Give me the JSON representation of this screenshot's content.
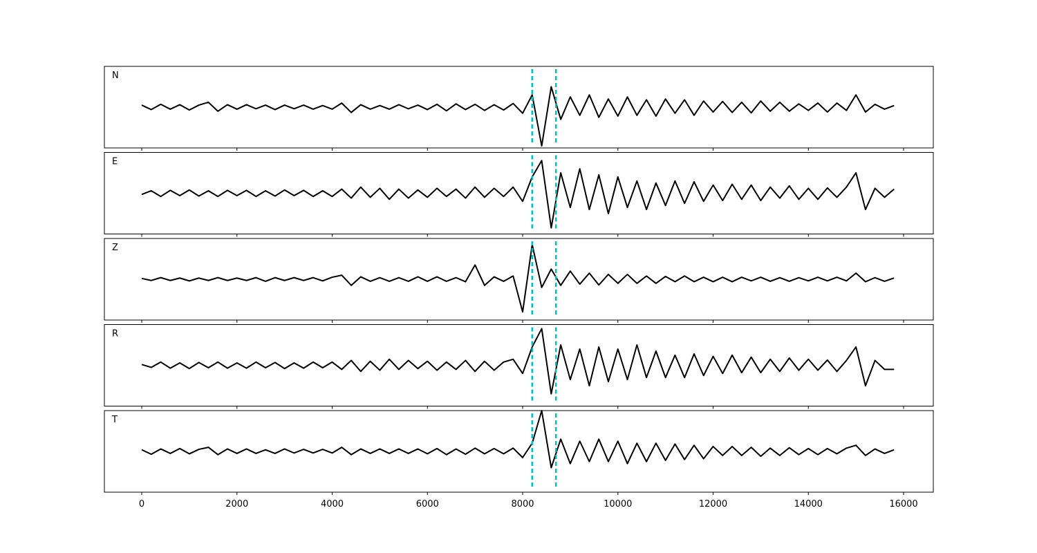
{
  "chart_data": {
    "type": "line",
    "x": [
      0,
      200,
      400,
      600,
      800,
      1000,
      1200,
      1400,
      1600,
      1800,
      2000,
      2200,
      2400,
      2600,
      2800,
      3000,
      3200,
      3400,
      3600,
      3800,
      4000,
      4200,
      4400,
      4600,
      4800,
      5000,
      5200,
      5400,
      5600,
      5800,
      6000,
      6200,
      6400,
      6600,
      6800,
      7000,
      7200,
      7400,
      7600,
      7800,
      8000,
      8200,
      8400,
      8600,
      8800,
      9000,
      9200,
      9400,
      9600,
      9800,
      10000,
      10200,
      10400,
      10600,
      10800,
      11000,
      11200,
      11400,
      11600,
      11800,
      12000,
      12200,
      12400,
      12600,
      12800,
      13000,
      13200,
      13400,
      13600,
      13800,
      14000,
      14200,
      14400,
      14600,
      14800,
      15000,
      15200,
      15400,
      15600,
      15800
    ],
    "series": [
      {
        "name": "N",
        "color": "#000000",
        "values": [
          0.05,
          -0.06,
          0.07,
          -0.05,
          0.06,
          -0.07,
          0.05,
          0.12,
          -0.1,
          0.06,
          -0.05,
          0.06,
          -0.04,
          0.05,
          -0.06,
          0.05,
          -0.04,
          0.05,
          -0.05,
          0.04,
          -0.05,
          0.1,
          -0.13,
          0.06,
          -0.05,
          0.04,
          -0.05,
          0.06,
          -0.04,
          0.05,
          -0.06,
          0.07,
          -0.09,
          0.08,
          -0.06,
          0.07,
          -0.08,
          0.06,
          -0.07,
          0.09,
          -0.15,
          0.3,
          -0.95,
          0.5,
          -0.3,
          0.25,
          -0.2,
          0.3,
          -0.25,
          0.2,
          -0.22,
          0.25,
          -0.2,
          0.18,
          -0.22,
          0.2,
          -0.15,
          0.18,
          -0.2,
          0.15,
          -0.12,
          0.14,
          -0.13,
          0.12,
          -0.14,
          0.15,
          -0.1,
          0.12,
          -0.1,
          0.08,
          -0.08,
          0.1,
          -0.12,
          0.1,
          -0.08,
          0.3,
          -0.12,
          0.07,
          -0.05,
          0.04
        ]
      },
      {
        "name": "E",
        "color": "#000000",
        "values": [
          -0.03,
          0.06,
          -0.08,
          0.07,
          -0.06,
          0.08,
          -0.07,
          0.06,
          -0.08,
          0.07,
          -0.06,
          0.07,
          -0.08,
          0.06,
          -0.07,
          0.08,
          -0.06,
          0.07,
          -0.08,
          0.06,
          -0.08,
          0.1,
          -0.12,
          0.15,
          -0.1,
          0.12,
          -0.15,
          0.1,
          -0.12,
          0.08,
          -0.1,
          0.12,
          -0.08,
          0.1,
          -0.12,
          0.15,
          -0.1,
          0.12,
          -0.08,
          0.15,
          -0.2,
          0.4,
          0.8,
          -0.85,
          0.5,
          -0.35,
          0.6,
          -0.4,
          0.45,
          -0.5,
          0.4,
          -0.35,
          0.3,
          -0.4,
          0.25,
          -0.3,
          0.3,
          -0.25,
          0.28,
          -0.2,
          0.2,
          -0.18,
          0.22,
          -0.15,
          0.2,
          -0.18,
          0.15,
          -0.12,
          0.18,
          -0.15,
          0.12,
          -0.15,
          0.13,
          -0.1,
          0.15,
          0.5,
          -0.4,
          0.12,
          -0.1,
          0.1
        ]
      },
      {
        "name": "Z",
        "color": "#000000",
        "values": [
          0.02,
          -0.03,
          0.04,
          -0.03,
          0.03,
          -0.04,
          0.03,
          -0.03,
          0.04,
          -0.03,
          0.03,
          -0.03,
          0.04,
          -0.05,
          0.04,
          -0.03,
          0.04,
          -0.03,
          0.04,
          -0.04,
          0.05,
          0.1,
          -0.15,
          0.06,
          -0.05,
          0.04,
          -0.05,
          0.04,
          -0.05,
          0.06,
          -0.05,
          0.06,
          -0.05,
          0.04,
          -0.06,
          0.35,
          -0.15,
          0.06,
          -0.05,
          0.08,
          -0.8,
          0.85,
          -0.2,
          0.25,
          -0.15,
          0.2,
          -0.12,
          0.15,
          -0.14,
          0.12,
          -0.1,
          0.12,
          -0.1,
          0.08,
          -0.1,
          0.07,
          -0.06,
          0.08,
          -0.06,
          0.05,
          -0.06,
          0.05,
          -0.06,
          0.05,
          -0.04,
          0.05,
          -0.05,
          0.04,
          -0.05,
          0.04,
          -0.04,
          0.05,
          -0.04,
          0.05,
          -0.04,
          0.15,
          -0.06,
          0.04,
          -0.05,
          0.03
        ]
      },
      {
        "name": "R",
        "color": "#000000",
        "values": [
          0.02,
          -0.05,
          0.08,
          -0.07,
          0.06,
          -0.08,
          0.07,
          -0.06,
          0.08,
          -0.07,
          0.06,
          -0.07,
          0.08,
          -0.06,
          0.07,
          -0.08,
          0.06,
          -0.07,
          0.08,
          -0.06,
          0.08,
          -0.1,
          0.12,
          -0.15,
          0.1,
          -0.12,
          0.15,
          -0.1,
          0.12,
          -0.08,
          0.1,
          -0.12,
          0.08,
          -0.1,
          0.12,
          -0.15,
          0.1,
          -0.12,
          0.08,
          0.15,
          -0.2,
          0.45,
          0.9,
          -0.7,
          0.5,
          -0.35,
          0.4,
          -0.5,
          0.45,
          -0.4,
          0.4,
          -0.35,
          0.5,
          -0.3,
          0.35,
          -0.3,
          0.25,
          -0.3,
          0.28,
          -0.25,
          0.22,
          -0.2,
          0.25,
          -0.18,
          0.2,
          -0.18,
          0.15,
          -0.15,
          0.18,
          -0.12,
          0.15,
          -0.12,
          0.13,
          -0.15,
          0.12,
          0.45,
          -0.5,
          0.12,
          -0.1,
          -0.1
        ]
      },
      {
        "name": "T",
        "color": "#000000",
        "values": [
          0.04,
          -0.07,
          0.06,
          -0.05,
          0.07,
          -0.06,
          0.05,
          0.1,
          -0.08,
          0.06,
          -0.05,
          0.06,
          -0.05,
          0.04,
          -0.05,
          0.06,
          -0.04,
          0.05,
          -0.04,
          0.05,
          -0.04,
          0.1,
          -0.08,
          0.06,
          -0.05,
          0.06,
          -0.05,
          0.06,
          -0.05,
          0.06,
          -0.06,
          0.07,
          -0.08,
          0.06,
          -0.07,
          0.08,
          -0.06,
          0.07,
          -0.06,
          0.08,
          -0.15,
          0.2,
          1.0,
          -0.4,
          0.3,
          -0.3,
          0.25,
          -0.25,
          0.3,
          -0.25,
          0.25,
          -0.3,
          0.2,
          -0.25,
          0.2,
          -0.22,
          0.18,
          -0.2,
          0.15,
          -0.18,
          0.12,
          -0.1,
          0.12,
          -0.1,
          0.1,
          -0.12,
          0.08,
          -0.1,
          0.09,
          -0.08,
          0.07,
          -0.08,
          0.07,
          -0.06,
          0.08,
          0.15,
          -0.1,
          0.06,
          -0.05,
          0.04
        ]
      }
    ],
    "markers": [
      8200,
      8700
    ],
    "marker_color": "#00bfbf",
    "xlim": [
      -784,
      16624
    ],
    "xticks": [
      0,
      2000,
      4000,
      6000,
      8000,
      10000,
      12000,
      14000,
      16000
    ],
    "ylim": [
      -1,
      1
    ]
  }
}
